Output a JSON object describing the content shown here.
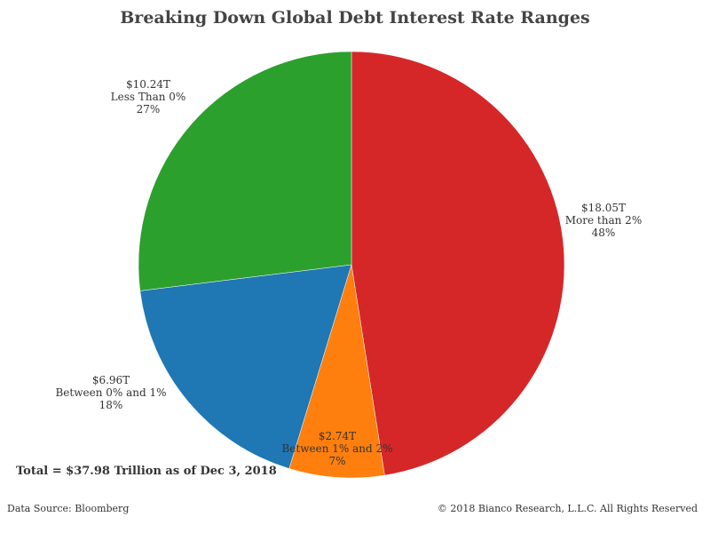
{
  "chart_data": {
    "type": "pie",
    "title": "Breaking Down Global Debt Interest Rate Ranges",
    "slices": [
      {
        "name": "More than 2%",
        "value_label": "$18.05T",
        "value": 18.05,
        "percent_label": "48%",
        "percent": 48,
        "color": "#d62728"
      },
      {
        "name": "Between 1% and 2%",
        "value_label": "$2.74T",
        "value": 2.74,
        "percent_label": "7%",
        "percent": 7,
        "color": "#ff7f0e"
      },
      {
        "name": "Between 0% and 1%",
        "value_label": "$6.96T",
        "value": 6.96,
        "percent_label": "18%",
        "percent": 18,
        "color": "#1f77b4"
      },
      {
        "name": "Less Than 0%",
        "value_label": "$10.24T",
        "value": 10.24,
        "percent_label": "27%",
        "percent": 27,
        "color": "#2ca02c"
      }
    ],
    "start_angle": "12 o'clock",
    "direction": "clockwise",
    "legend": "none"
  },
  "annotations": {
    "total": "Total = $37.98 Trillion as of Dec 3, 2018"
  },
  "footer": {
    "source": "Data Source: Bloomberg",
    "copyright": "© 2018 Bianco Research, L.L.C. All Rights Reserved"
  }
}
